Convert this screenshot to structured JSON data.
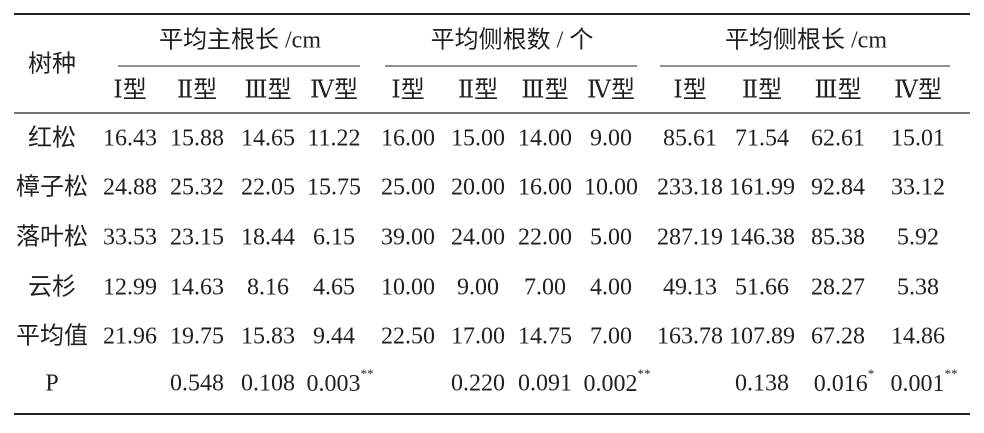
{
  "table": {
    "corner": "树种",
    "groups": [
      {
        "label": "平均主根长 /cm",
        "types": [
          "Ⅰ型",
          "Ⅱ型",
          "Ⅲ型",
          "Ⅳ型"
        ]
      },
      {
        "label": "平均侧根数 / 个",
        "types": [
          "Ⅰ型",
          "Ⅱ型",
          "Ⅲ型",
          "Ⅳ型"
        ]
      },
      {
        "label": "平均侧根长 /cm",
        "types": [
          "Ⅰ型",
          "Ⅱ型",
          "Ⅲ型",
          "Ⅳ型"
        ]
      }
    ],
    "rows": [
      {
        "name": "红松",
        "cells": [
          "16.43",
          "15.88",
          "14.65",
          "11.22",
          "16.00",
          "15.00",
          "14.00",
          "9.00",
          "85.61",
          "71.54",
          "62.61",
          "15.01"
        ]
      },
      {
        "name": "樟子松",
        "cells": [
          "24.88",
          "25.32",
          "22.05",
          "15.75",
          "25.00",
          "20.00",
          "16.00",
          "10.00",
          "233.18",
          "161.99",
          "92.84",
          "33.12"
        ]
      },
      {
        "name": "落叶松",
        "cells": [
          "33.53",
          "23.15",
          "18.44",
          "6.15",
          "39.00",
          "24.00",
          "22.00",
          "5.00",
          "287.19",
          "146.38",
          "85.38",
          "5.92"
        ]
      },
      {
        "name": "云杉",
        "cells": [
          "12.99",
          "14.63",
          "8.16",
          "4.65",
          "10.00",
          "9.00",
          "7.00",
          "4.00",
          "49.13",
          "51.66",
          "28.27",
          "5.38"
        ]
      },
      {
        "name": "平均值",
        "cells": [
          "21.96",
          "19.75",
          "15.83",
          "9.44",
          "22.50",
          "17.00",
          "14.75",
          "7.00",
          "163.78",
          "107.89",
          "67.28",
          "14.86"
        ]
      },
      {
        "name": "P",
        "cells": [
          null,
          "0.548",
          "0.108",
          {
            "text": "0.003",
            "sup": "**"
          },
          null,
          "0.220",
          "0.091",
          {
            "text": "0.002",
            "sup": "**"
          },
          null,
          "0.138",
          {
            "text": "0.016",
            "sup": "*"
          },
          {
            "text": "0.001",
            "sup": "**"
          }
        ]
      }
    ]
  }
}
